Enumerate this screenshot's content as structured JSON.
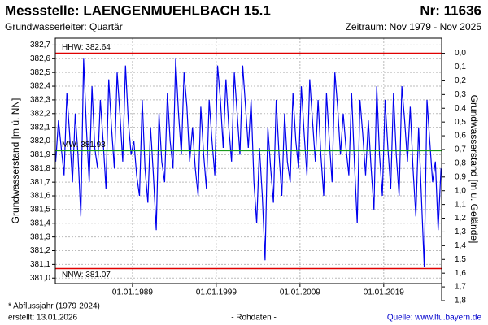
{
  "chart_data": {
    "type": "line",
    "title": "Messstelle: LAENGENMUEHLBACH 15.1",
    "number": "Nr: 11636",
    "subtitle": "Grundwasserleiter: Quartär",
    "period": "Zeitraum: Nov 1979 - Nov 2025",
    "ylabel": "Grundwasserstand [m ü. NN]",
    "y2label": "Grundwasserstand [m u. Gelände]",
    "footnote": "* Abflussjahr (1979-2024)",
    "created": "erstellt:  13.01.2026",
    "data_note": "- Rohdaten -",
    "source": "Quelle: www.lfu.bayern.de",
    "grid": true,
    "xlim": [
      "1979-10-15",
      "2025-11-30"
    ],
    "xticks": [
      {
        "value": "1989-01-01",
        "label": "01.01.1989"
      },
      {
        "value": "1999-01-01",
        "label": "01.01.1999"
      },
      {
        "value": "2009-01-01",
        "label": "01.01.2009"
      },
      {
        "value": "2019-01-01",
        "label": "01.01.2019"
      }
    ],
    "ylim": [
      380.96,
      382.75
    ],
    "yticks": [
      {
        "value": 381.0,
        "label": "381,0"
      },
      {
        "value": 381.1,
        "label": "381,1"
      },
      {
        "value": 381.2,
        "label": "381,2"
      },
      {
        "value": 381.3,
        "label": "381,3"
      },
      {
        "value": 381.4,
        "label": "381,4"
      },
      {
        "value": 381.5,
        "label": "381,5"
      },
      {
        "value": 381.6,
        "label": "381,6"
      },
      {
        "value": 381.7,
        "label": "381,7"
      },
      {
        "value": 381.8,
        "label": "381,8"
      },
      {
        "value": 381.9,
        "label": "381,9"
      },
      {
        "value": 382.0,
        "label": "382,0"
      },
      {
        "value": 382.1,
        "label": "382,1"
      },
      {
        "value": 382.2,
        "label": "382,2"
      },
      {
        "value": 382.3,
        "label": "382,3"
      },
      {
        "value": 382.4,
        "label": "382,4"
      },
      {
        "value": 382.5,
        "label": "382,5"
      },
      {
        "value": 382.6,
        "label": "382,6"
      },
      {
        "value": 382.7,
        "label": "382,7"
      }
    ],
    "y2lim": [
      -0.11,
      1.8
    ],
    "y2ticks": [
      {
        "value": 0.0,
        "label": "0,0"
      },
      {
        "value": 0.1,
        "label": "0,1"
      },
      {
        "value": 0.2,
        "label": "0,2"
      },
      {
        "value": 0.3,
        "label": "0,3"
      },
      {
        "value": 0.4,
        "label": "0,4"
      },
      {
        "value": 0.5,
        "label": "0,5"
      },
      {
        "value": 0.6,
        "label": "0,6"
      },
      {
        "value": 0.7,
        "label": "0,7"
      },
      {
        "value": 0.8,
        "label": "0,8"
      },
      {
        "value": 0.9,
        "label": "0,9"
      },
      {
        "value": 1.0,
        "label": "1,0"
      },
      {
        "value": 1.1,
        "label": "1,1"
      },
      {
        "value": 1.2,
        "label": "1,2"
      },
      {
        "value": 1.3,
        "label": "1,3"
      },
      {
        "value": 1.4,
        "label": "1,4"
      },
      {
        "value": 1.5,
        "label": "1,5"
      },
      {
        "value": 1.6,
        "label": "1,6"
      },
      {
        "value": 1.7,
        "label": "1,7"
      },
      {
        "value": 1.8,
        "label": "1,8"
      }
    ],
    "reference_lines": [
      {
        "label": "HHW: 382.64",
        "value": 382.64,
        "color": "#e00000"
      },
      {
        "label": "MW: 381.93",
        "value": 381.93,
        "color": "#1a9a1a"
      },
      {
        "label": "NNW: 381.07",
        "value": 381.07,
        "color": "#e00000"
      }
    ],
    "series": [
      {
        "color": "#0000ee",
        "x": [
          "1979-11-01",
          "1980-03-01",
          "1980-07-01",
          "1980-11-01",
          "1981-03-01",
          "1981-07-01",
          "1981-11-01",
          "1982-03-01",
          "1982-07-01",
          "1982-11-01",
          "1983-03-01",
          "1983-07-01",
          "1983-11-01",
          "1984-03-01",
          "1984-07-01",
          "1984-11-01",
          "1985-03-01",
          "1985-07-01",
          "1985-11-01",
          "1986-03-01",
          "1986-07-01",
          "1986-11-01",
          "1987-03-01",
          "1987-07-01",
          "1987-11-01",
          "1988-03-01",
          "1988-07-01",
          "1988-11-01",
          "1989-03-01",
          "1989-07-01",
          "1989-11-01",
          "1990-03-01",
          "1990-07-01",
          "1990-11-01",
          "1991-03-01",
          "1991-07-01",
          "1991-11-01",
          "1992-03-01",
          "1992-07-01",
          "1992-11-01",
          "1993-03-01",
          "1993-07-01",
          "1993-11-01",
          "1994-03-01",
          "1994-07-01",
          "1994-11-01",
          "1995-03-01",
          "1995-07-01",
          "1995-11-01",
          "1996-03-01",
          "1996-07-01",
          "1996-11-01",
          "1997-03-01",
          "1997-07-01",
          "1997-11-01",
          "1998-03-01",
          "1998-07-01",
          "1998-11-01",
          "1999-03-01",
          "1999-07-01",
          "1999-11-01",
          "2000-03-01",
          "2000-07-01",
          "2000-11-01",
          "2001-03-01",
          "2001-07-01",
          "2001-11-01",
          "2002-03-01",
          "2002-07-01",
          "2002-11-01",
          "2003-03-01",
          "2003-07-01",
          "2003-11-01",
          "2004-03-01",
          "2004-07-01",
          "2004-11-01",
          "2005-03-01",
          "2005-07-01",
          "2005-11-01",
          "2006-03-01",
          "2006-07-01",
          "2006-11-01",
          "2007-03-01",
          "2007-07-01",
          "2007-11-01",
          "2008-03-01",
          "2008-07-01",
          "2008-11-01",
          "2009-03-01",
          "2009-07-01",
          "2009-11-01",
          "2010-03-01",
          "2010-07-01",
          "2010-11-01",
          "2011-03-01",
          "2011-07-01",
          "2011-11-01",
          "2012-03-01",
          "2012-07-01",
          "2012-11-01",
          "2013-03-01",
          "2013-07-01",
          "2013-11-01",
          "2014-03-01",
          "2014-07-01",
          "2014-11-01",
          "2015-03-01",
          "2015-07-01",
          "2015-11-01",
          "2016-03-01",
          "2016-07-01",
          "2016-11-01",
          "2017-03-01",
          "2017-07-01",
          "2017-11-01",
          "2018-03-01",
          "2018-07-01",
          "2018-11-01",
          "2019-03-01",
          "2019-07-01",
          "2019-11-01",
          "2020-03-01",
          "2020-07-01",
          "2020-11-01",
          "2021-03-01",
          "2021-07-01",
          "2021-11-01",
          "2022-03-01",
          "2022-07-01",
          "2022-11-01",
          "2023-03-01",
          "2023-07-01",
          "2023-11-01",
          "2024-03-01",
          "2024-07-01",
          "2024-11-01",
          "2025-03-01",
          "2025-07-01",
          "2025-11-01"
        ],
        "values": [
          381.85,
          382.15,
          381.95,
          381.75,
          382.35,
          382.05,
          381.7,
          382.2,
          381.9,
          381.45,
          382.6,
          382.1,
          381.7,
          382.4,
          381.95,
          381.8,
          382.3,
          382.0,
          381.65,
          382.45,
          382.1,
          381.8,
          382.5,
          382.2,
          381.85,
          382.55,
          382.15,
          381.9,
          382.0,
          381.75,
          381.6,
          382.3,
          381.8,
          381.55,
          382.1,
          381.75,
          381.35,
          382.2,
          381.85,
          381.7,
          382.35,
          382.0,
          381.8,
          382.6,
          382.2,
          381.9,
          382.5,
          382.25,
          381.85,
          382.1,
          381.8,
          381.6,
          382.25,
          381.9,
          381.65,
          382.3,
          382.0,
          381.75,
          382.55,
          382.3,
          381.95,
          382.45,
          382.1,
          381.85,
          382.5,
          382.2,
          381.9,
          382.55,
          382.25,
          381.95,
          382.3,
          381.7,
          381.4,
          381.95,
          381.6,
          381.13,
          382.1,
          381.8,
          381.55,
          382.3,
          381.9,
          381.6,
          382.2,
          381.85,
          381.7,
          382.35,
          382.0,
          381.8,
          382.4,
          382.05,
          381.75,
          382.45,
          382.15,
          381.85,
          382.3,
          381.9,
          381.6,
          382.35,
          382.0,
          381.7,
          382.5,
          382.25,
          381.9,
          382.2,
          381.95,
          381.75,
          382.35,
          381.85,
          381.4,
          382.3,
          382.05,
          381.75,
          382.15,
          381.8,
          381.5,
          382.4,
          381.9,
          381.6,
          382.3,
          381.95,
          381.65,
          382.35,
          381.9,
          381.6,
          382.4,
          382.15,
          381.85,
          382.25,
          381.8,
          381.45,
          382.1,
          381.6,
          381.08,
          382.3,
          382.0,
          381.7,
          381.85,
          381.35,
          381.8
        ]
      }
    ]
  }
}
